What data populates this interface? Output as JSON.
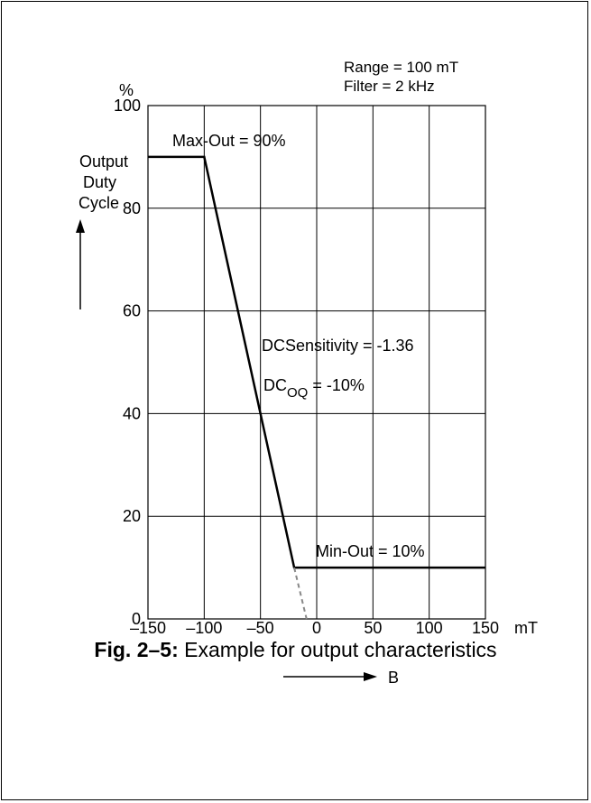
{
  "chart_data": {
    "type": "line",
    "y_unit": "%",
    "ylabel_lines": [
      "Output",
      "Duty",
      "Cycle"
    ],
    "x_unit": "mT",
    "xlabel": "B",
    "xlim": [
      -150,
      150
    ],
    "ylim": [
      0,
      100
    ],
    "x_ticks": [
      "–150",
      "–100",
      "–50",
      "0",
      "50",
      "100",
      "150"
    ],
    "y_ticks": [
      "0",
      "20",
      "40",
      "60",
      "80",
      "100"
    ],
    "grid": true,
    "series": [
      {
        "style": "solid",
        "x": [
          -150,
          -100,
          -20,
          150
        ],
        "y": [
          90,
          90,
          10,
          10
        ]
      },
      {
        "style": "dashed",
        "x": [
          -20,
          -9
        ],
        "y": [
          10,
          0
        ]
      }
    ],
    "annotations": {
      "range": "Range = 100 mT",
      "filter": "Filter = 2 kHz",
      "max_out": "Max-Out = 90%",
      "min_out": "Min-Out = 10%",
      "sensitivity": "DCSensitivity = -1.36",
      "dc_prefix": "DC",
      "dc_sub": "OQ",
      "dc_suffix": " = -10%"
    },
    "colors": {
      "line": "#000000",
      "dashed": "#888888",
      "grid": "#000000"
    }
  },
  "caption": {
    "prefix": "Fig. 2–5:",
    "text": " Example for output characteristics"
  }
}
